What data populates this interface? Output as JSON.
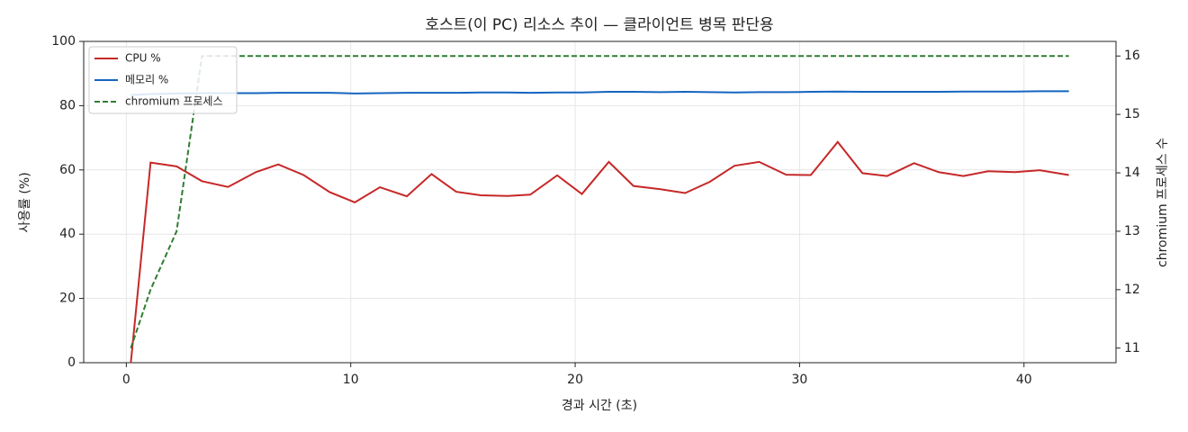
{
  "chart_data": {
    "type": "line",
    "title": "호스트(이 PC) 리소스 추이 — 클라이언트 병목 판단용",
    "xlabel": "경과 시간 (초)",
    "ylabel": "사용률 (%)",
    "y2label": "chromium 프로세스 수",
    "x": [
      0.2,
      1.08,
      2.24,
      3.37,
      4.53,
      5.77,
      6.77,
      7.9,
      9.06,
      10.18,
      11.3,
      12.5,
      13.6,
      14.7,
      15.8,
      17.0,
      18.0,
      19.2,
      20.3,
      21.5,
      22.6,
      23.8,
      24.9,
      26.0,
      27.1,
      28.2,
      29.4,
      30.5,
      31.7,
      32.8,
      33.9,
      35.1,
      36.2,
      37.3,
      38.4,
      39.6,
      40.7,
      42.0
    ],
    "series": [
      {
        "name": "CPU %",
        "color": "#c62828",
        "linestyle": "solid",
        "values": [
          0,
          62.3,
          61.1,
          56.5,
          54.7,
          59.3,
          61.7,
          58.4,
          53.1,
          49.9,
          54.6,
          51.8,
          58.7,
          53.2,
          52.1,
          51.9,
          52.3,
          58.3,
          52.5,
          62.5,
          55.0,
          54.0,
          52.8,
          56.3,
          61.3,
          62.5,
          58.5,
          58.4,
          68.7,
          59.0,
          58.1,
          62.1,
          59.3,
          58.1,
          59.6,
          59.3,
          59.9,
          58.4
        ]
      },
      {
        "name": "메모리 %",
        "color": "#1565c0",
        "linestyle": "solid",
        "values": [
          83.3,
          83.6,
          83.8,
          83.9,
          83.9,
          83.9,
          84.0,
          84.0,
          84.0,
          83.8,
          83.9,
          84.0,
          84.0,
          84.0,
          84.1,
          84.1,
          84.0,
          84.1,
          84.1,
          84.3,
          84.3,
          84.2,
          84.3,
          84.2,
          84.1,
          84.2,
          84.2,
          84.3,
          84.4,
          84.3,
          84.3,
          84.3,
          84.3,
          84.4,
          84.4,
          84.4,
          84.5,
          84.5
        ]
      },
      {
        "name": "chromium 프로세스",
        "color": "#2e7d32",
        "linestyle": "dashed",
        "axis": "y2",
        "values": [
          11,
          12,
          13,
          16,
          16,
          16,
          16,
          16,
          16,
          16,
          16,
          16,
          16,
          16,
          16,
          16,
          16,
          16,
          16,
          16,
          16,
          16,
          16,
          16,
          16,
          16,
          16,
          16,
          16,
          16,
          16,
          16,
          16,
          16,
          16,
          16,
          16,
          16
        ]
      }
    ],
    "xlim": [
      -1.9,
      44.1
    ],
    "xticks": [
      0,
      10,
      20,
      30,
      40
    ],
    "ylim": [
      0,
      100
    ],
    "yticks": [
      0,
      20,
      40,
      60,
      80,
      100
    ],
    "y2lim": [
      10.75,
      16.25
    ],
    "y2ticks": [
      11,
      12,
      13,
      14,
      15,
      16
    ],
    "grid": true,
    "legend": "upper-left"
  }
}
